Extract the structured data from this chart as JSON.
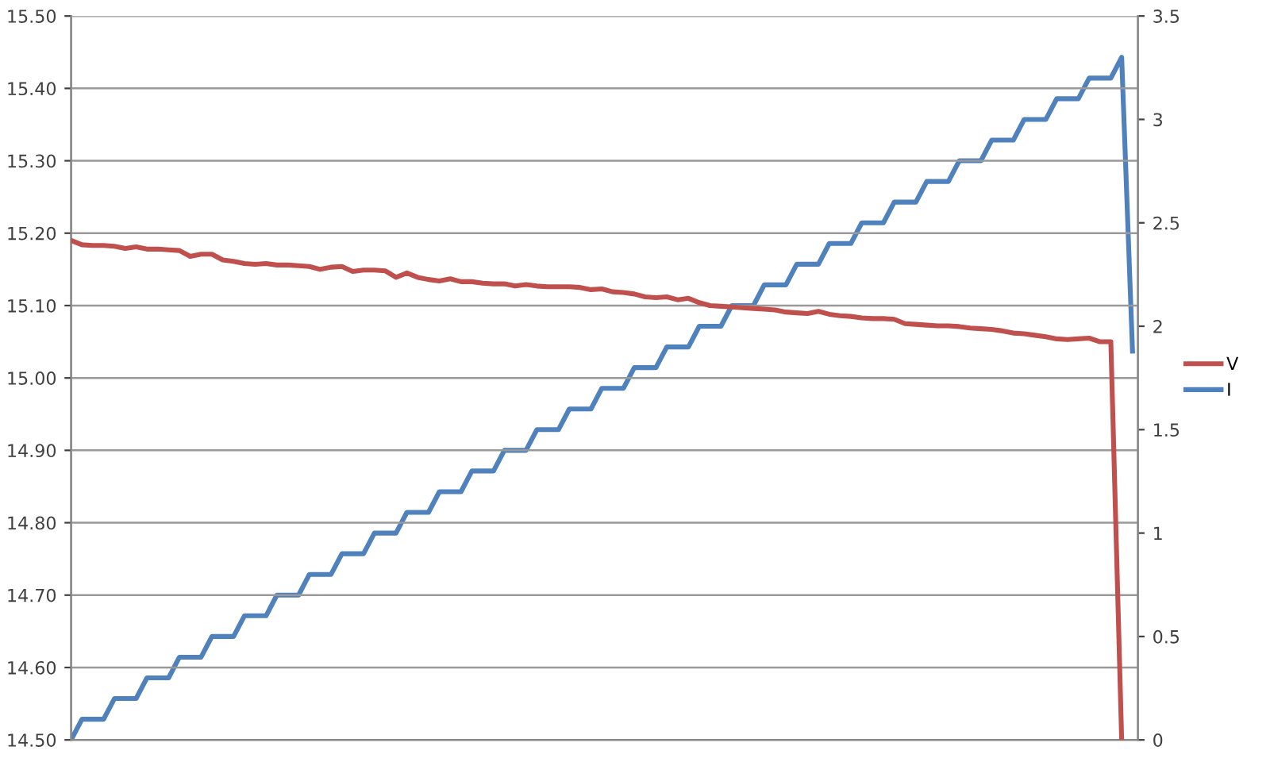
{
  "chart_data": {
    "type": "line",
    "categories": [
      null,
      null,
      null,
      null,
      null,
      null,
      null,
      null,
      null,
      null,
      null,
      null,
      null,
      null,
      null,
      null,
      null,
      null,
      null,
      null,
      null,
      null,
      null,
      null,
      null,
      null,
      null,
      null,
      null,
      null,
      null,
      null,
      null,
      null,
      null,
      null,
      null,
      null,
      null,
      null,
      null,
      null,
      null,
      null,
      null,
      null,
      null,
      null,
      null,
      null,
      null,
      null,
      null,
      null,
      null,
      null,
      null,
      null,
      null,
      null,
      null,
      null,
      null,
      null,
      null,
      null,
      null,
      null,
      null,
      null,
      null,
      null,
      null,
      null,
      null,
      null,
      null,
      null,
      null,
      null,
      null,
      null,
      null,
      null,
      null,
      null,
      null,
      null,
      null,
      null,
      null,
      null,
      null,
      null,
      null,
      null,
      null,
      null,
      null
    ],
    "series": [
      {
        "name": "V",
        "color": "#c0504d",
        "values": [
          15.19,
          15.184,
          15.183,
          15.183,
          15.182,
          15.179,
          15.181,
          15.178,
          15.178,
          15.177,
          15.176,
          15.168,
          15.171,
          15.171,
          15.163,
          15.161,
          15.158,
          15.157,
          15.158,
          15.156,
          15.156,
          15.155,
          15.154,
          15.15,
          15.153,
          15.154,
          15.147,
          15.149,
          15.149,
          15.148,
          15.139,
          15.145,
          15.139,
          15.136,
          15.134,
          15.137,
          15.133,
          15.133,
          15.131,
          15.13,
          15.13,
          15.127,
          15.129,
          15.127,
          15.126,
          15.126,
          15.126,
          15.125,
          15.122,
          15.123,
          15.119,
          15.118,
          15.116,
          15.112,
          15.111,
          15.112,
          15.108,
          15.11,
          15.104,
          15.1,
          15.099,
          15.098,
          15.097,
          15.096,
          15.095,
          15.094,
          15.091,
          15.09,
          15.089,
          15.092,
          15.088,
          15.086,
          15.085,
          15.083,
          15.082,
          15.082,
          15.081,
          15.075,
          15.074,
          15.073,
          15.072,
          15.072,
          15.071,
          15.069,
          15.068,
          15.067,
          15.065,
          15.062,
          15.061,
          15.059,
          15.057,
          15.054,
          15.053,
          15.054,
          15.055,
          15.05,
          15.05,
          14.5,
          null
        ]
      },
      {
        "name": "I",
        "color": "#4f81bd",
        "axis": "y2",
        "values": [
          0,
          0.1,
          0.1,
          0.1,
          0.2,
          0.2,
          0.2,
          0.3,
          0.3,
          0.3,
          0.4,
          0.4,
          0.4,
          0.5,
          0.5,
          0.5,
          0.6,
          0.6,
          0.6,
          0.7,
          0.7,
          0.7,
          0.8,
          0.8,
          0.8,
          0.9,
          0.9,
          0.9,
          1.0,
          1.0,
          1.0,
          1.1,
          1.1,
          1.1,
          1.2,
          1.2,
          1.2,
          1.3,
          1.3,
          1.3,
          1.4,
          1.4,
          1.4,
          1.5,
          1.5,
          1.5,
          1.6,
          1.6,
          1.6,
          1.7,
          1.7,
          1.7,
          1.8,
          1.8,
          1.8,
          1.9,
          1.9,
          1.9,
          2.0,
          2.0,
          2.0,
          2.1,
          2.1,
          2.1,
          2.2,
          2.2,
          2.2,
          2.3,
          2.3,
          2.3,
          2.4,
          2.4,
          2.4,
          2.5,
          2.5,
          2.5,
          2.6,
          2.6,
          2.6,
          2.7,
          2.7,
          2.7,
          2.8,
          2.8,
          2.8,
          2.9,
          2.9,
          2.9,
          3.0,
          3.0,
          3.0,
          3.1,
          3.1,
          3.1,
          3.2,
          3.2,
          3.2,
          3.3,
          1.88
        ]
      }
    ],
    "ylim": [
      14.5,
      15.5
    ],
    "yticks": [
      {
        "value": 14.5,
        "label": "14.50"
      },
      {
        "value": 14.6,
        "label": "14.60"
      },
      {
        "value": 14.7,
        "label": "14.70"
      },
      {
        "value": 14.8,
        "label": "14.80"
      },
      {
        "value": 14.9,
        "label": "14.90"
      },
      {
        "value": 15.0,
        "label": "15.00"
      },
      {
        "value": 15.1,
        "label": "15.10"
      },
      {
        "value": 15.2,
        "label": "15.20"
      },
      {
        "value": 15.3,
        "label": "15.30"
      },
      {
        "value": 15.4,
        "label": "15.40"
      },
      {
        "value": 15.5,
        "label": "15.50"
      }
    ],
    "y2lim": [
      0,
      3.5
    ],
    "y2ticks": [
      0,
      0.5,
      1,
      1.5,
      2,
      2.5,
      3,
      3.5
    ],
    "grid": "y",
    "legend": "right",
    "marker": "none",
    "line_style": "solid"
  }
}
